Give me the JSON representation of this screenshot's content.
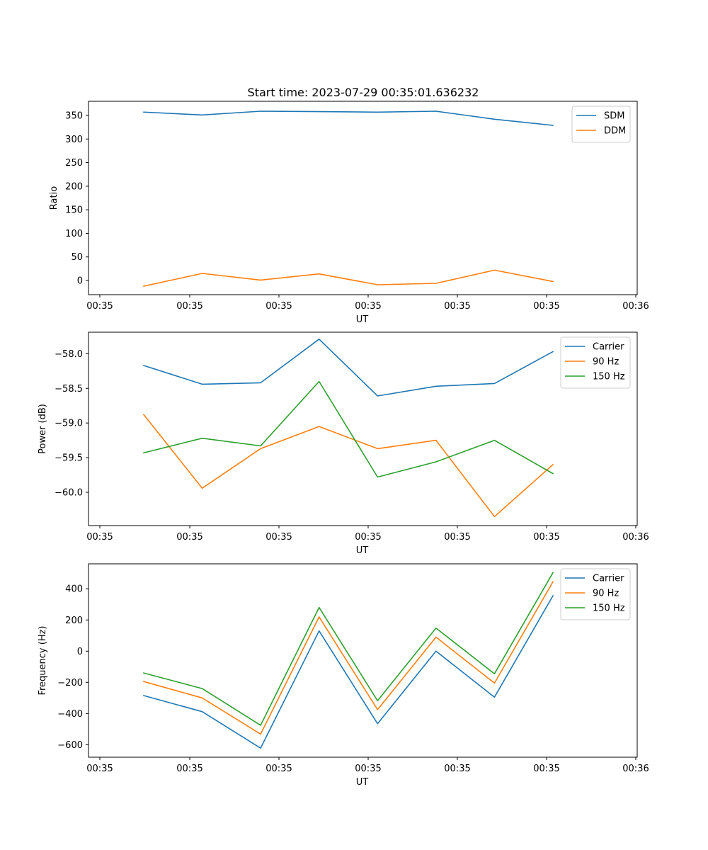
{
  "figure": {
    "title": "Start time: 2023-07-29 00:35:01.636232"
  },
  "chart_data": [
    {
      "type": "line",
      "title": "Start time: 2023-07-29 00:35:01.636232",
      "xlabel": "UT",
      "ylabel": "Ratio",
      "x_ticks": [
        "00:35",
        "00:35",
        "00:35",
        "00:35",
        "00:35",
        "00:35",
        "00:35",
        "00:36"
      ],
      "y_ticks": [
        0,
        50,
        100,
        150,
        200,
        250,
        300,
        350
      ],
      "ylim": [
        -30,
        380
      ],
      "x": [
        1,
        2,
        3,
        4,
        5,
        6,
        7,
        8
      ],
      "xlim": [
        0.05,
        8.57
      ],
      "x_tick_positions": [
        0.25,
        1.75,
        3.25,
        4.75,
        6.25,
        7.75,
        9.25,
        10.75
      ],
      "legend_position": "top-right",
      "series": [
        {
          "name": "SDM",
          "color": "#1f77b4",
          "values": [
            357,
            351,
            359,
            358,
            357,
            359,
            342,
            329
          ]
        },
        {
          "name": "DDM",
          "color": "#ff7f0e",
          "values": [
            -12,
            15,
            1,
            14,
            -9,
            -6,
            22,
            -2
          ]
        }
      ]
    },
    {
      "type": "line",
      "title": "",
      "xlabel": "UT",
      "ylabel": "Power (dB)",
      "x_ticks": [
        "00:35",
        "00:35",
        "00:35",
        "00:35",
        "00:35",
        "00:35",
        "00:35",
        "00:36"
      ],
      "y_ticks": [
        -60.0,
        -59.5,
        -59.0,
        -58.5,
        -58.0
      ],
      "y_tick_labels": [
        "−60.0",
        "−59.5",
        "−59.0",
        "−58.5",
        "−58.0"
      ],
      "ylim": [
        -60.48,
        -57.69
      ],
      "x": [
        1,
        2,
        3,
        4,
        5,
        6,
        7,
        8
      ],
      "legend_position": "top-right",
      "series": [
        {
          "name": "Carrier",
          "color": "#1f77b4",
          "values": [
            -58.17,
            -58.44,
            -58.42,
            -57.79,
            -58.61,
            -58.47,
            -58.43,
            -57.97
          ]
        },
        {
          "name": "90 Hz",
          "color": "#ff7f0e",
          "values": [
            -58.88,
            -59.94,
            -59.37,
            -59.05,
            -59.37,
            -59.25,
            -60.35,
            -59.6
          ]
        },
        {
          "name": "150 Hz",
          "color": "#2ca02c",
          "values": [
            -59.43,
            -59.22,
            -59.33,
            -58.4,
            -59.78,
            -59.56,
            -59.25,
            -59.73
          ]
        }
      ]
    },
    {
      "type": "line",
      "title": "",
      "xlabel": "UT",
      "ylabel": "Frequency (Hz)",
      "x_ticks": [
        "00:35",
        "00:35",
        "00:35",
        "00:35",
        "00:35",
        "00:35",
        "00:35",
        "00:36"
      ],
      "y_ticks": [
        -600,
        -400,
        -200,
        0,
        200,
        400
      ],
      "y_tick_labels": [
        "−600",
        "−400",
        "−200",
        "0",
        "200",
        "400"
      ],
      "ylim": [
        -680,
        560
      ],
      "x": [
        1,
        2,
        3,
        4,
        5,
        6,
        7,
        8
      ],
      "legend_position": "top-right",
      "series": [
        {
          "name": "Carrier",
          "color": "#1f77b4",
          "values": [
            -285,
            -388,
            -622,
            130,
            -465,
            0,
            -295,
            355
          ]
        },
        {
          "name": "90 Hz",
          "color": "#ff7f0e",
          "values": [
            -195,
            -300,
            -532,
            220,
            -375,
            90,
            -205,
            445
          ]
        },
        {
          "name": "150 Hz",
          "color": "#2ca02c",
          "values": [
            -140,
            -240,
            -475,
            280,
            -318,
            148,
            -145,
            503
          ]
        }
      ]
    }
  ]
}
